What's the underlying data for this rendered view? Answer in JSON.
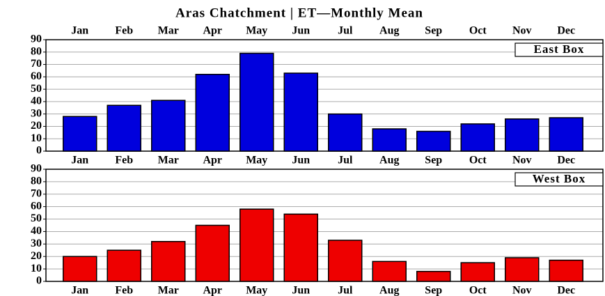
{
  "chart_data": [
    {
      "type": "bar",
      "title": "Aras Chatchment | ET—Monthly Mean",
      "label": "East Box",
      "categories": [
        "Jan",
        "Feb",
        "Mar",
        "Apr",
        "May",
        "Jun",
        "Jul",
        "Aug",
        "Sep",
        "Oct",
        "Nov",
        "Dec"
      ],
      "values": [
        28,
        37,
        41,
        62,
        79,
        63,
        30,
        18,
        16,
        22,
        26,
        27
      ],
      "color": "#0000dd",
      "ylim": [
        0,
        90
      ],
      "yticks": [
        0,
        10,
        20,
        30,
        40,
        50,
        60,
        70,
        80,
        90
      ],
      "grid": true
    },
    {
      "type": "bar",
      "label": "West Box",
      "categories": [
        "Jan",
        "Feb",
        "Mar",
        "Apr",
        "May",
        "Jun",
        "Jul",
        "Aug",
        "Sep",
        "Oct",
        "Nov",
        "Dec"
      ],
      "values": [
        20,
        25,
        32,
        45,
        58,
        54,
        33,
        16,
        8,
        15,
        19,
        17
      ],
      "color": "#ee0000",
      "ylim": [
        0,
        90
      ],
      "yticks": [
        0,
        10,
        20,
        30,
        40,
        50,
        60,
        70,
        80,
        90
      ],
      "grid": true
    }
  ]
}
